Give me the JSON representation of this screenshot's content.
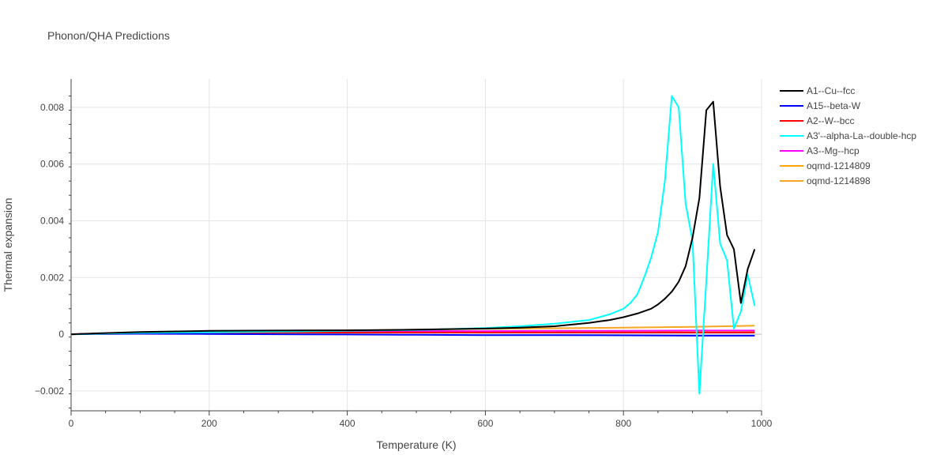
{
  "chart_data": {
    "type": "line",
    "title": "Phonon/QHA Predictions",
    "xlabel": "Temperature (K)",
    "ylabel": "Thermal expansion",
    "xlim": [
      0,
      1000
    ],
    "ylim": [
      -0.0027,
      0.009
    ],
    "x_ticks": [
      0,
      200,
      400,
      600,
      800,
      1000
    ],
    "x_tick_labels": [
      "0",
      "200",
      "400",
      "600",
      "800",
      "1000"
    ],
    "y_ticks": [
      -0.002,
      0,
      0.002,
      0.004,
      0.006,
      0.008
    ],
    "y_tick_labels": [
      "−0.002",
      "0",
      "0.002",
      "0.004",
      "0.006",
      "0.008"
    ],
    "grid": true,
    "legend_position": "right",
    "series": [
      {
        "name": "A1--Cu--fcc",
        "color": "#000000",
        "x": [
          0,
          50,
          100,
          200,
          300,
          400,
          500,
          600,
          650,
          700,
          750,
          780,
          800,
          820,
          840,
          850,
          860,
          870,
          880,
          890,
          900,
          910,
          920,
          930,
          940,
          950,
          960,
          970,
          980,
          990
        ],
        "y": [
          0,
          4e-05,
          8e-05,
          0.00012,
          0.00013,
          0.00014,
          0.00016,
          0.0002,
          0.00023,
          0.00028,
          0.0004,
          0.0005,
          0.0006,
          0.00073,
          0.0009,
          0.00105,
          0.00125,
          0.0015,
          0.00185,
          0.0024,
          0.0034,
          0.0048,
          0.0079,
          0.0082,
          0.0052,
          0.0035,
          0.003,
          0.0011,
          0.0023,
          0.003
        ]
      },
      {
        "name": "A15--beta-W",
        "color": "#0000ff",
        "x": [
          0,
          100,
          200,
          300,
          400,
          500,
          600,
          700,
          800,
          900,
          990
        ],
        "y": [
          0,
          2e-05,
          1e-05,
          0.0,
          -1e-05,
          -2e-05,
          -3e-05,
          -3e-05,
          -4e-05,
          -5e-05,
          -5e-05
        ]
      },
      {
        "name": "A2--W--bcc",
        "color": "#ff0000",
        "x": [
          0,
          100,
          200,
          300,
          400,
          500,
          600,
          700,
          800,
          900,
          990
        ],
        "y": [
          0,
          6e-05,
          6e-05,
          6e-05,
          6e-05,
          6e-05,
          6e-05,
          6e-05,
          6e-05,
          6e-05,
          6e-05
        ]
      },
      {
        "name": "A3'--alpha-La--double-hcp",
        "color": "#00ffff",
        "x": [
          0,
          100,
          200,
          300,
          400,
          500,
          600,
          650,
          700,
          750,
          780,
          800,
          810,
          820,
          830,
          840,
          850,
          860,
          870,
          880,
          890,
          900,
          910,
          920,
          930,
          940,
          950,
          960,
          970,
          980,
          990
        ],
        "y": [
          0,
          5e-05,
          7e-05,
          9e-05,
          0.00012,
          0.00015,
          0.00022,
          0.00028,
          0.00037,
          0.0005,
          0.0007,
          0.0009,
          0.0011,
          0.0014,
          0.002,
          0.0027,
          0.0036,
          0.0054,
          0.0084,
          0.008,
          0.0046,
          0.0033,
          -0.0021,
          0.0019,
          0.006,
          0.0032,
          0.0026,
          0.0002,
          0.0008,
          0.0021,
          0.001
        ]
      },
      {
        "name": "A3--Mg--hcp",
        "color": "#ff00ff",
        "x": [
          0,
          100,
          200,
          300,
          400,
          500,
          600,
          700,
          800,
          900,
          990
        ],
        "y": [
          0,
          6e-05,
          9e-05,
          0.0001,
          0.0001,
          0.00011,
          0.00011,
          0.00012,
          0.00012,
          0.00013,
          0.00013
        ]
      },
      {
        "name": "oqmd-1214809",
        "color": "#ffa500",
        "x": [
          0,
          100,
          200,
          300,
          400,
          500,
          600,
          700,
          800,
          900,
          990
        ],
        "y": [
          0,
          2e-05,
          4e-05,
          5e-05,
          5e-05,
          6e-05,
          6e-05,
          7e-05,
          7e-05,
          7e-05,
          8e-05
        ]
      },
      {
        "name": "oqmd-1214898",
        "color": "#f5a623",
        "x": [
          0,
          100,
          200,
          300,
          400,
          500,
          600,
          700,
          800,
          900,
          990
        ],
        "y": [
          0,
          4e-05,
          7e-05,
          0.0001,
          0.00013,
          0.00016,
          0.00019,
          0.00021,
          0.00023,
          0.00026,
          0.0003
        ]
      }
    ]
  }
}
